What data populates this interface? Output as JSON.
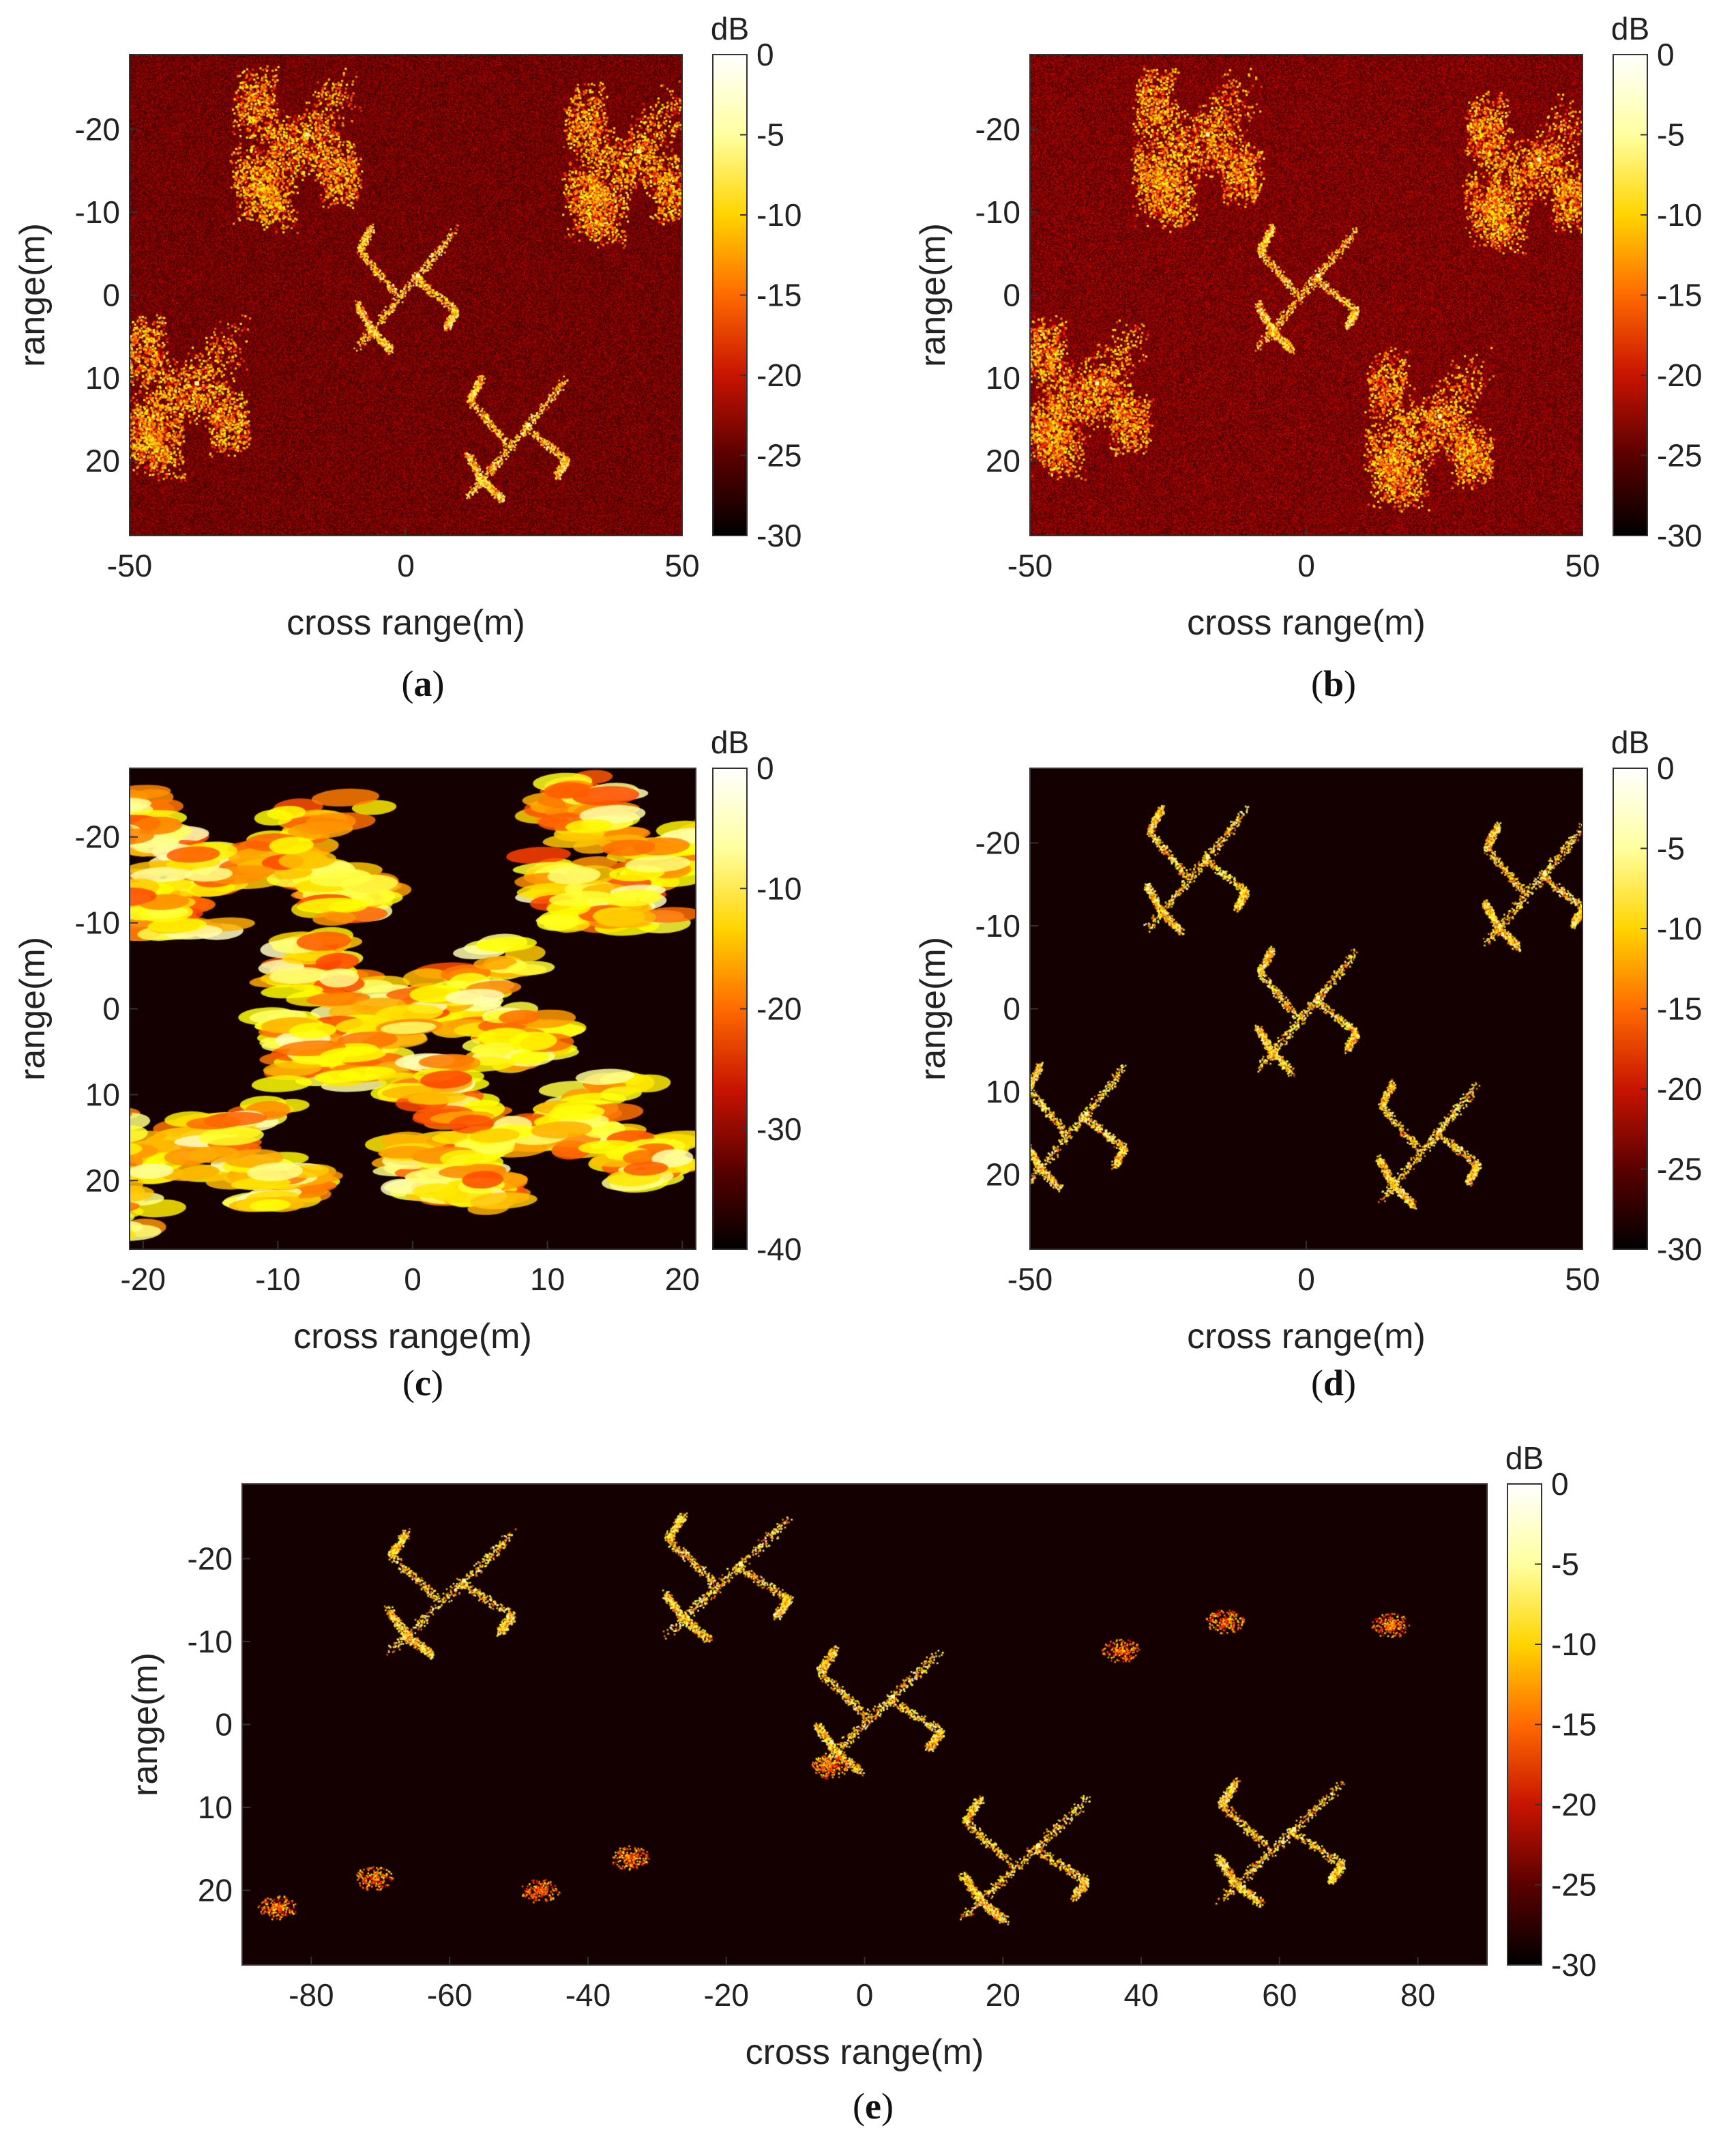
{
  "colormap": {
    "name": "hot",
    "stops": [
      "#000000",
      "#5a0000",
      "#c81400",
      "#ff6a00",
      "#ffd400",
      "#ffffa0",
      "#ffffff"
    ],
    "background_rgb": [
      20,
      0,
      0
    ]
  },
  "chart_data": [
    {
      "type": "heatmap",
      "panel_label": "a",
      "xlabel": "cross range(m)",
      "ylabel": "range(m)",
      "xlim": [
        -50,
        50
      ],
      "ylim": [
        -29,
        29
      ],
      "xticks": [
        -50,
        0,
        50
      ],
      "yticks": [
        -20,
        -10,
        0,
        10,
        20
      ],
      "colorbar": {
        "label": "dB",
        "range": [
          -30,
          0
        ],
        "ticks": [
          0,
          -5,
          -10,
          -15,
          -20,
          -25,
          -30
        ]
      },
      "noise_floor_db": -20,
      "targets": [
        {
          "x": -20,
          "y": -18,
          "style": "blurred"
        },
        {
          "x": 40,
          "y": -16,
          "style": "blurred"
        },
        {
          "x": 0,
          "y": -1,
          "style": "sharp"
        },
        {
          "x": -40,
          "y": 12,
          "style": "blurred"
        },
        {
          "x": 20,
          "y": 17,
          "style": "sharp"
        }
      ]
    },
    {
      "type": "heatmap",
      "panel_label": "b",
      "xlabel": "cross range(m)",
      "ylabel": "range(m)",
      "xlim": [
        -50,
        50
      ],
      "ylim": [
        -29,
        29
      ],
      "xticks": [
        -50,
        0,
        50
      ],
      "yticks": [
        -20,
        -10,
        0,
        10,
        20
      ],
      "colorbar": {
        "label": "dB",
        "range": [
          -30,
          0
        ],
        "ticks": [
          0,
          -5,
          -10,
          -15,
          -20,
          -25,
          -30
        ]
      },
      "noise_floor_db": -19,
      "targets": [
        {
          "x": -20,
          "y": -18,
          "style": "blurred"
        },
        {
          "x": 40,
          "y": -15,
          "style": "blurred"
        },
        {
          "x": 0,
          "y": -1,
          "style": "sharp"
        },
        {
          "x": -40,
          "y": 12,
          "style": "blurred"
        },
        {
          "x": 22,
          "y": 16,
          "style": "blurred"
        }
      ]
    },
    {
      "type": "heatmap",
      "panel_label": "c",
      "xlabel": "cross range(m)",
      "ylabel": "range(m)",
      "xlim": [
        -21,
        21
      ],
      "ylim": [
        -28,
        28
      ],
      "xticks": [
        -20,
        -10,
        0,
        10,
        20
      ],
      "yticks": [
        -20,
        -10,
        0,
        10,
        20
      ],
      "colorbar": {
        "label": "dB",
        "range": [
          -40,
          0
        ],
        "ticks": [
          0,
          -10,
          -20,
          -30,
          -40
        ]
      },
      "noise_floor_db": -40,
      "targets": [
        {
          "x": -13,
          "y": -17,
          "style": "smeared"
        },
        {
          "x": 0,
          "y": 0,
          "style": "smeared"
        },
        {
          "x": 9,
          "y": 14,
          "style": "smeared"
        },
        {
          "x": -18,
          "y": 17,
          "style": "smeared"
        },
        {
          "x": 20,
          "y": -18,
          "style": "smeared"
        }
      ]
    },
    {
      "type": "heatmap",
      "panel_label": "d",
      "xlabel": "cross range(m)",
      "ylabel": "range(m)",
      "xlim": [
        -50,
        50
      ],
      "ylim": [
        -29,
        29
      ],
      "xticks": [
        -50,
        0,
        50
      ],
      "yticks": [
        -20,
        -10,
        0,
        10,
        20
      ],
      "colorbar": {
        "label": "dB",
        "range": [
          -30,
          0
        ],
        "ticks": [
          0,
          -5,
          -10,
          -15,
          -20,
          -25,
          -30
        ]
      },
      "noise_floor_db": -30,
      "targets": [
        {
          "x": -20,
          "y": -17,
          "style": "sharp"
        },
        {
          "x": 41,
          "y": -15,
          "style": "sharp"
        },
        {
          "x": 0,
          "y": 0,
          "style": "sharp"
        },
        {
          "x": -42,
          "y": 14,
          "style": "sharp"
        },
        {
          "x": 22,
          "y": 16,
          "style": "sharp"
        }
      ]
    },
    {
      "type": "heatmap",
      "panel_label": "e",
      "xlabel": "cross range(m)",
      "ylabel": "range(m)",
      "xlim": [
        -90,
        90
      ],
      "ylim": [
        -29,
        29
      ],
      "xticks": [
        -80,
        -60,
        -40,
        -20,
        0,
        20,
        40,
        60,
        80
      ],
      "yticks": [
        -20,
        -10,
        0,
        10,
        20
      ],
      "colorbar": {
        "label": "dB",
        "range": [
          -30,
          0
        ],
        "ticks": [
          0,
          -5,
          -10,
          -15,
          -20,
          -25,
          -30
        ]
      },
      "noise_floor_db": -30,
      "targets": [
        {
          "x": -60,
          "y": -16,
          "style": "sharp"
        },
        {
          "x": -20,
          "y": -18,
          "style": "sharp"
        },
        {
          "x": 2,
          "y": -2,
          "style": "sharp"
        },
        {
          "x": 23,
          "y": 16,
          "style": "sharp"
        },
        {
          "x": 60,
          "y": 14,
          "style": "sharp"
        }
      ],
      "weak_spots": [
        {
          "x": 37,
          "y": -9
        },
        {
          "x": 52,
          "y": -12.5
        },
        {
          "x": 76,
          "y": -12
        },
        {
          "x": -85,
          "y": 22
        },
        {
          "x": -71,
          "y": 18.5
        },
        {
          "x": -47,
          "y": 20
        },
        {
          "x": -34,
          "y": 16
        },
        {
          "x": -5,
          "y": 5
        }
      ]
    }
  ]
}
